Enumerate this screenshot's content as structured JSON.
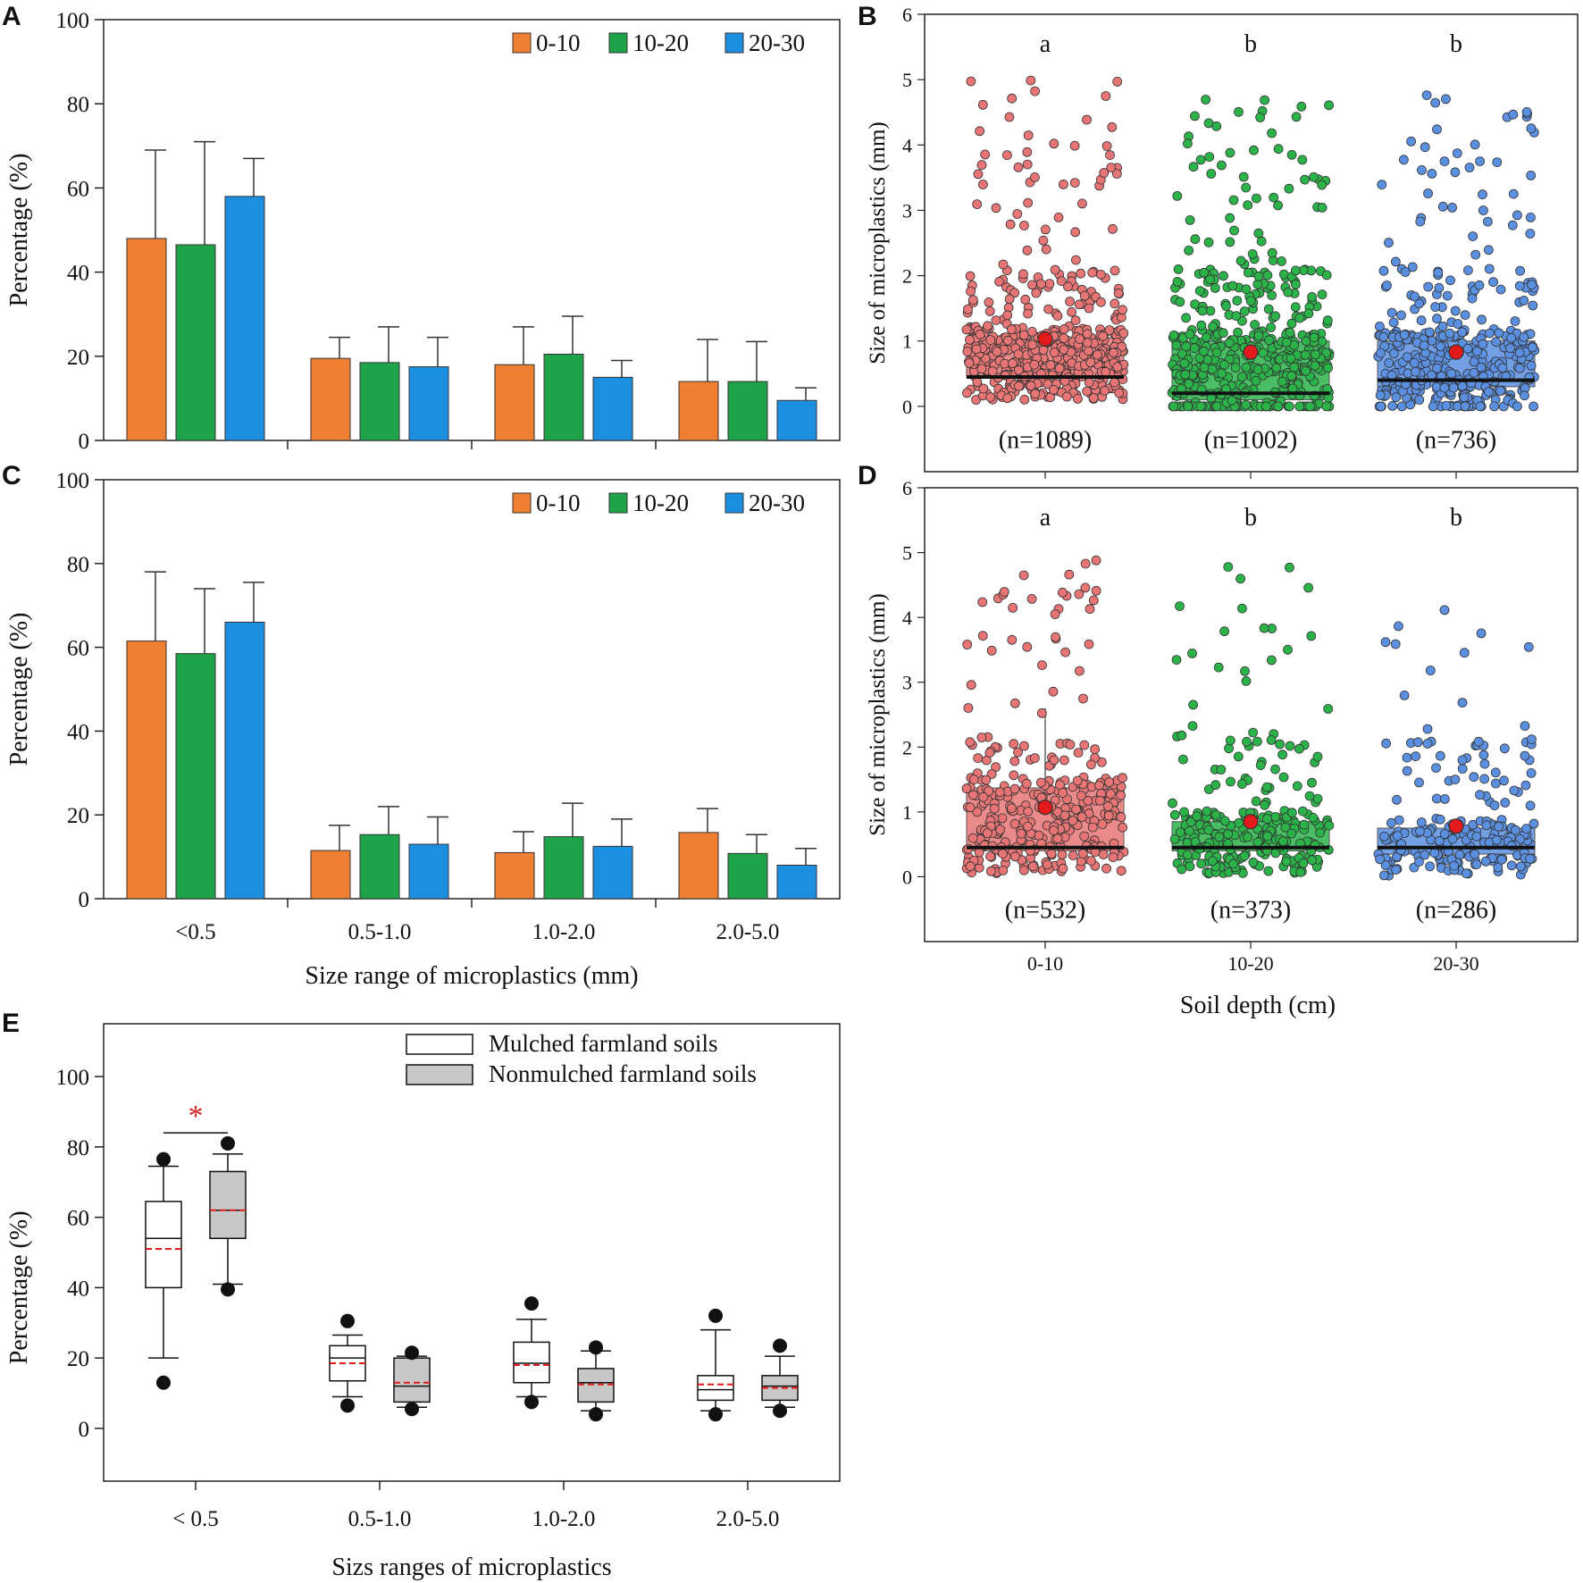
{
  "chart_data": [
    {
      "panel": "A",
      "type": "bar",
      "categories": [
        "<0.5",
        "0.5-1.0",
        "1.0-2.0",
        "2.0-5.0"
      ],
      "series": [
        {
          "name": "0-10",
          "color": "#ee7f33",
          "values": [
            48,
            19.5,
            18,
            14
          ],
          "errors": [
            21,
            5,
            9,
            10
          ]
        },
        {
          "name": "10-20",
          "color": "#1ea34a",
          "values": [
            46.5,
            18.5,
            20.5,
            14
          ],
          "errors": [
            24.5,
            8.5,
            9,
            9.5
          ]
        },
        {
          "name": "20-30",
          "color": "#1c8fe0",
          "values": [
            58,
            17.5,
            15,
            9.5
          ],
          "errors": [
            9,
            7,
            4,
            3
          ]
        }
      ],
      "ylabel": "Percentage  (%)",
      "ylim": [
        0,
        100
      ],
      "yticks": [
        0,
        20,
        40,
        60,
        80,
        100
      ],
      "legend": "top-right"
    },
    {
      "panel": "B",
      "type": "scatter",
      "categories": [
        "0-10",
        "10-20",
        "20-30"
      ],
      "groups": [
        {
          "name": "0-10",
          "color": "#e87575",
          "n_label": "(n=1089)",
          "sig": "a",
          "mean": 1.03,
          "median": 0.45,
          "q1": 0.45,
          "q3": 1.05,
          "n_points": 520,
          "max": 5.0
        },
        {
          "name": "10-20",
          "color": "#2bb34a",
          "n_label": "(n=1002)",
          "sig": "b",
          "mean": 0.83,
          "median": 0.2,
          "q1": 0.1,
          "q3": 1.0,
          "n_points": 480,
          "max": 4.7
        },
        {
          "name": "20-30",
          "color": "#5b8fe0",
          "n_label": "(n=736)",
          "sig": "b",
          "mean": 0.83,
          "median": 0.4,
          "q1": 0.3,
          "q3": 1.0,
          "n_points": 380,
          "max": 4.8
        }
      ],
      "ylabel": "Size of microplastics (mm)",
      "ylim": [
        -1,
        6
      ],
      "yticks": [
        0,
        1,
        2,
        3,
        4,
        5,
        6
      ]
    },
    {
      "panel": "C",
      "type": "bar",
      "categories": [
        "<0.5",
        "0.5-1.0",
        "1.0-2.0",
        "2.0-5.0"
      ],
      "series": [
        {
          "name": "0-10",
          "color": "#ee7f33",
          "values": [
            61.5,
            11.5,
            11,
            15.8
          ],
          "errors": [
            16.5,
            6,
            5,
            5.7
          ]
        },
        {
          "name": "10-20",
          "color": "#1ea34a",
          "values": [
            58.5,
            15.3,
            14.8,
            10.8
          ],
          "errors": [
            15.5,
            6.7,
            8,
            4.5
          ]
        },
        {
          "name": "20-30",
          "color": "#1c8fe0",
          "values": [
            66,
            13,
            12.5,
            8
          ],
          "errors": [
            9.5,
            6.5,
            6.5,
            4
          ]
        }
      ],
      "xlabel": "Size range  of microplastics  (mm)",
      "ylabel": "Percentage  (%)",
      "ylim": [
        0,
        100
      ],
      "yticks": [
        0,
        20,
        40,
        60,
        80,
        100
      ],
      "legend": "top-right"
    },
    {
      "panel": "D",
      "type": "scatter",
      "categories": [
        "0-10",
        "10-20",
        "20-30"
      ],
      "groups": [
        {
          "name": "0-10",
          "color": "#e87575",
          "n_label": "(n=532)",
          "sig": "a",
          "mean": 1.07,
          "median": 0.45,
          "q1": 0.4,
          "q3": 1.37,
          "whisker_high": 2.6,
          "n_points": 330,
          "max": 5.0
        },
        {
          "name": "10-20",
          "color": "#2bb34a",
          "n_label": "(n=373)",
          "sig": "b",
          "mean": 0.85,
          "median": 0.45,
          "q1": 0.4,
          "q3": 0.85,
          "n_points": 260,
          "max": 4.8
        },
        {
          "name": "20-30",
          "color": "#5b8fe0",
          "n_label": "(n=286)",
          "sig": "b",
          "mean": 0.78,
          "median": 0.45,
          "q1": 0.35,
          "q3": 0.75,
          "n_points": 210,
          "max": 4.3
        }
      ],
      "xlabel": "Soil depth (cm)",
      "ylabel": "Size of microplastics (mm)",
      "ylim": [
        -1,
        6
      ],
      "yticks": [
        0,
        1,
        2,
        3,
        4,
        5,
        6
      ]
    },
    {
      "panel": "E",
      "type": "box",
      "categories": [
        "< 0.5",
        "0.5-1.0",
        "1.0-2.0",
        "2.0-5.0"
      ],
      "series": [
        {
          "name": "Mulched farmland soils",
          "fill": "#ffffff",
          "boxes": [
            {
              "whisker_low": 20,
              "q1": 40,
              "median": 54,
              "mean": 51,
              "q3": 64.5,
              "whisker_high": 74.5,
              "outliers": [
                13,
                76.5
              ]
            },
            {
              "whisker_low": 9,
              "q1": 13.5,
              "median": 20,
              "mean": 18.5,
              "q3": 23.5,
              "whisker_high": 26.5,
              "outliers": [
                6.5,
                30.5
              ]
            },
            {
              "whisker_low": 9,
              "q1": 13,
              "median": 18.5,
              "mean": 18,
              "q3": 24.5,
              "whisker_high": 31,
              "outliers": [
                7.5,
                35.5
              ]
            },
            {
              "whisker_low": 5,
              "q1": 8,
              "median": 11,
              "mean": 12.5,
              "q3": 15,
              "whisker_high": 28,
              "outliers": [
                4,
                32
              ]
            }
          ]
        },
        {
          "name": "Nonmulched farmland soils",
          "fill": "#c8c8c8",
          "boxes": [
            {
              "whisker_low": 41,
              "q1": 54,
              "median": 62,
              "mean": 62,
              "q3": 73,
              "whisker_high": 78,
              "outliers": [
                39.5,
                81
              ]
            },
            {
              "whisker_low": 6,
              "q1": 7.5,
              "median": 12,
              "mean": 13,
              "q3": 20,
              "whisker_high": 20.5,
              "outliers": [
                5.5,
                21.5
              ]
            },
            {
              "whisker_low": 5,
              "q1": 7.5,
              "median": 13,
              "mean": 12.5,
              "q3": 17,
              "whisker_high": 22,
              "outliers": [
                4,
                23
              ]
            },
            {
              "whisker_low": 6,
              "q1": 8,
              "median": 12,
              "mean": 11.5,
              "q3": 15,
              "whisker_high": 20.5,
              "outliers": [
                5,
                23.5
              ]
            }
          ]
        }
      ],
      "mean_style": "red dashed line",
      "significance": "*",
      "xlabel": "Sizs ranges of microplastics",
      "ylabel": "Percentage (%)",
      "ylim": [
        -15,
        115
      ],
      "yticks": [
        0,
        20,
        40,
        60,
        80,
        100
      ],
      "legend": "top-right"
    }
  ],
  "panels": {
    "A": {
      "letter": "A"
    },
    "B": {
      "letter": "B"
    },
    "C": {
      "letter": "C"
    },
    "D": {
      "letter": "D"
    },
    "E": {
      "letter": "E"
    }
  }
}
